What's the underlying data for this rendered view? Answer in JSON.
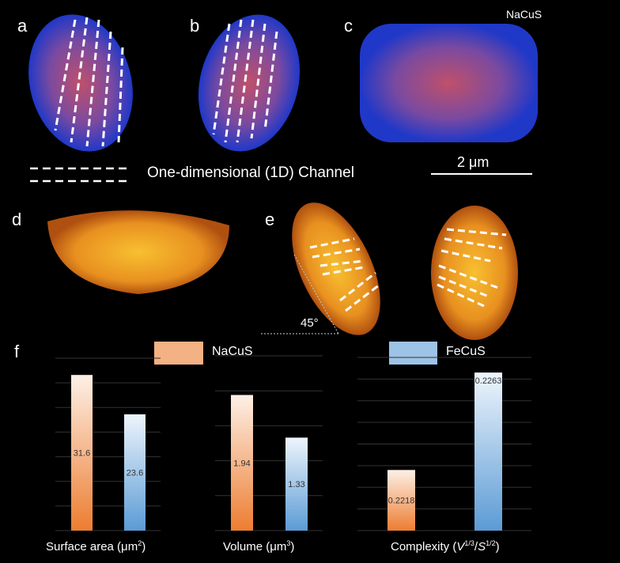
{
  "panel_labels": {
    "a": "a",
    "b": "b",
    "c": "c",
    "d": "d",
    "e": "e",
    "f": "f"
  },
  "top": {
    "sample_label": "NaCuS",
    "scale_bar": "2 μm",
    "channel_legend": "One-dimensional (1D) Channel",
    "angle": "45°"
  },
  "legend": [
    {
      "name": "NaCuS",
      "color": "#f4b183"
    },
    {
      "name": "FeCuS",
      "color": "#9dc3e6"
    }
  ],
  "chart_data": [
    {
      "type": "bar",
      "xlabel": "Surface area (μm²)",
      "categories": [
        "NaCuS",
        "FeCuS"
      ],
      "values": [
        31.6,
        23.6
      ],
      "labels": [
        "31.6",
        "23.6"
      ],
      "ylim": [
        0,
        35
      ],
      "grid_step": 5
    },
    {
      "type": "bar",
      "xlabel": "Volume (μm³)",
      "categories": [
        "NaCuS",
        "FeCuS"
      ],
      "values": [
        1.94,
        1.33
      ],
      "labels": [
        "1.94",
        "1.33"
      ],
      "ylim": [
        0,
        2.5
      ],
      "grid_step": 0.5
    },
    {
      "type": "bar",
      "xlabel": "Complexity (V1/3/S1/2)",
      "categories": [
        "NaCuS",
        "FeCuS"
      ],
      "values": [
        0.2218,
        0.2263
      ],
      "labels": [
        "0.2218",
        "0.2263"
      ],
      "ylim": [
        0.219,
        0.227
      ],
      "grid_step": 0.001
    }
  ]
}
